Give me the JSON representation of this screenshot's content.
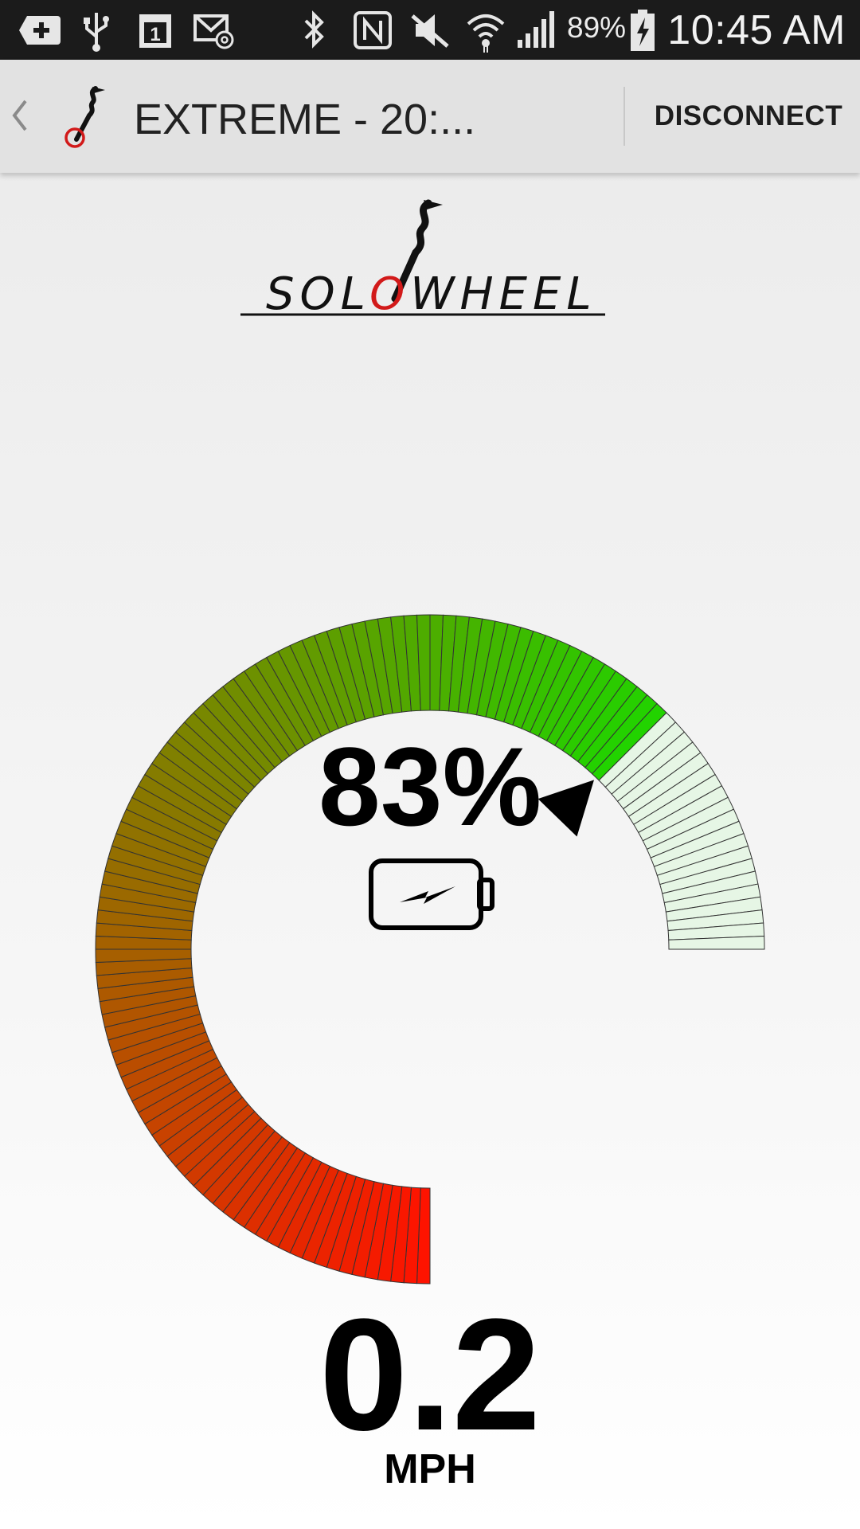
{
  "status_bar": {
    "battery_percent": "89%",
    "time": "10:45 AM",
    "icons": [
      "add-icon",
      "usb-icon",
      "calendar-icon",
      "email-icon",
      "bluetooth-icon",
      "nfc-icon",
      "mute-icon",
      "wifi-icon",
      "signal-icon",
      "battery-charging-icon"
    ],
    "calendar_day": "1"
  },
  "action_bar": {
    "title": "EXTREME - 20:...",
    "disconnect_label": "DISCONNECT"
  },
  "logo": {
    "text_before": "SOL",
    "text_o": "O",
    "text_after": "WHEEL"
  },
  "gauge": {
    "battery_level": 0.83,
    "colors": {
      "low": "#ff1200",
      "mid": "#8f7300",
      "high": "#22d300",
      "empty": "#e6f6e5",
      "outline": "#333333"
    }
  },
  "battery": {
    "percent_label": "83%"
  },
  "speed": {
    "value": "0.2",
    "unit": "MPH"
  }
}
